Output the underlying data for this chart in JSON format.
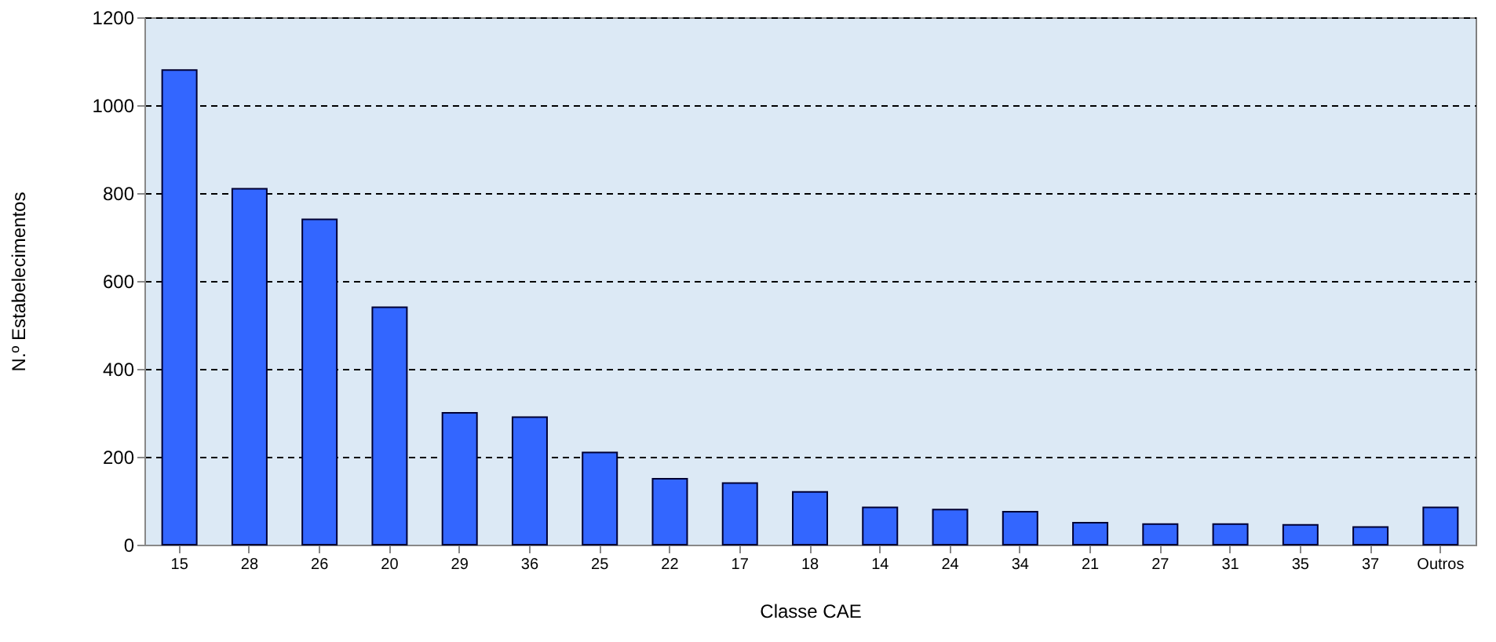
{
  "chart_data": {
    "type": "bar",
    "xlabel": "Classe CAE",
    "ylabel": "N.º Estabelecimentos",
    "categories": [
      "15",
      "28",
      "26",
      "20",
      "29",
      "36",
      "25",
      "22",
      "17",
      "18",
      "14",
      "24",
      "34",
      "21",
      "27",
      "31",
      "35",
      "37",
      "Outros"
    ],
    "values": [
      1080,
      810,
      740,
      540,
      300,
      290,
      210,
      150,
      140,
      120,
      85,
      80,
      75,
      50,
      47,
      47,
      45,
      40,
      85
    ],
    "color": "#3366ff",
    "ylim": [
      0,
      1200
    ],
    "yticks": [
      0,
      200,
      400,
      600,
      800,
      1000,
      1200
    ],
    "grid": "y"
  }
}
